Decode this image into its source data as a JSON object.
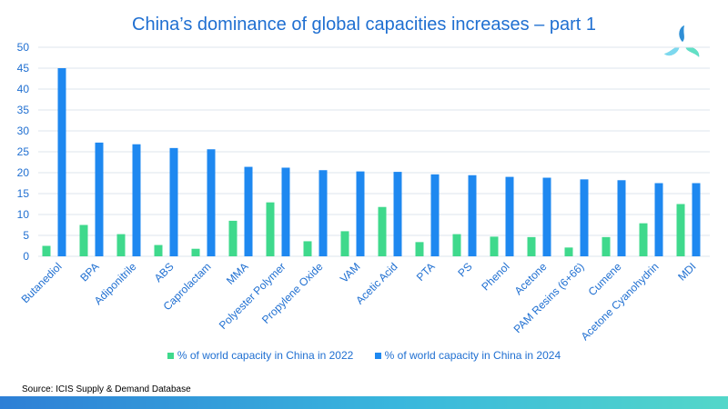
{
  "colors": {
    "series_2022": "#3fd98c",
    "series_2024": "#1e88f0",
    "text": "#1f6fd1",
    "grid": "#dde6ee"
  },
  "logo_icon": "snowflake-logo-icon",
  "source": "Source: ICIS Supply & Demand Database",
  "chart_data": {
    "type": "bar",
    "title": "China’s dominance of global capacities increases – part 1",
    "xlabel": "",
    "ylabel": "",
    "ylim": [
      0,
      50
    ],
    "yticks": [
      0,
      5,
      10,
      15,
      20,
      25,
      30,
      35,
      40,
      45,
      50
    ],
    "grid": true,
    "legend_position": "bottom",
    "categories": [
      "Butanediol",
      "BPA",
      "Adiponitrile",
      "ABS",
      "Caprolactam",
      "MMA",
      "Polyester Polymer",
      "Propylene Oxide",
      "VAM",
      "Acetic Acid",
      "PTA",
      "PS",
      "Phenol",
      "Acetone",
      "PAM Resins (6+66)",
      "Cumene",
      "Acetone Cyanohydrin",
      "MDI"
    ],
    "series": [
      {
        "name": "% of world capacity in China in 2022",
        "values": [
          2.5,
          7.5,
          5.3,
          2.7,
          1.8,
          8.5,
          12.9,
          3.6,
          6.0,
          11.8,
          3.4,
          5.3,
          4.7,
          4.6,
          2.1,
          4.6,
          7.9,
          12.5
        ]
      },
      {
        "name": "% of world capacity in China in 2024",
        "values": [
          45.0,
          27.2,
          26.8,
          25.9,
          25.6,
          21.4,
          21.2,
          20.6,
          20.3,
          20.2,
          19.6,
          19.4,
          19.0,
          18.8,
          18.4,
          18.2,
          17.5,
          17.5
        ]
      }
    ]
  }
}
